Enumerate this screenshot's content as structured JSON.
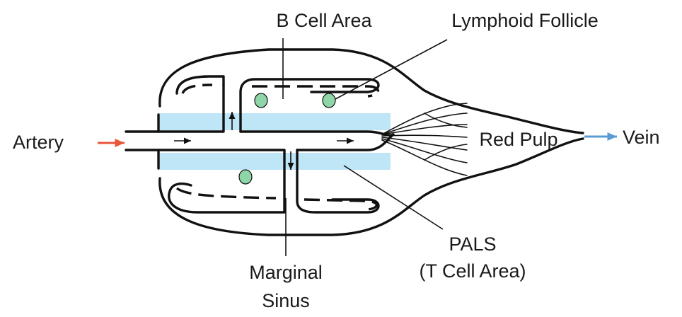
{
  "labels": {
    "b_cell_area": "B Cell Area",
    "lymphoid_follicle": "Lymphoid Follicle",
    "artery": "Artery",
    "red_pulp": "Red Pulp",
    "vein": "Vein",
    "pals_line1": "PALS",
    "pals_line2": "(T Cell Area)",
    "marginal_line1": "Marginal",
    "marginal_line2": "Sinus"
  },
  "colors": {
    "artery_arrow": "#e8553a",
    "vein_arrow": "#5b9bd5",
    "pals_fill": "#bfe6f6",
    "follicle_cell": "#8ed6a7"
  }
}
